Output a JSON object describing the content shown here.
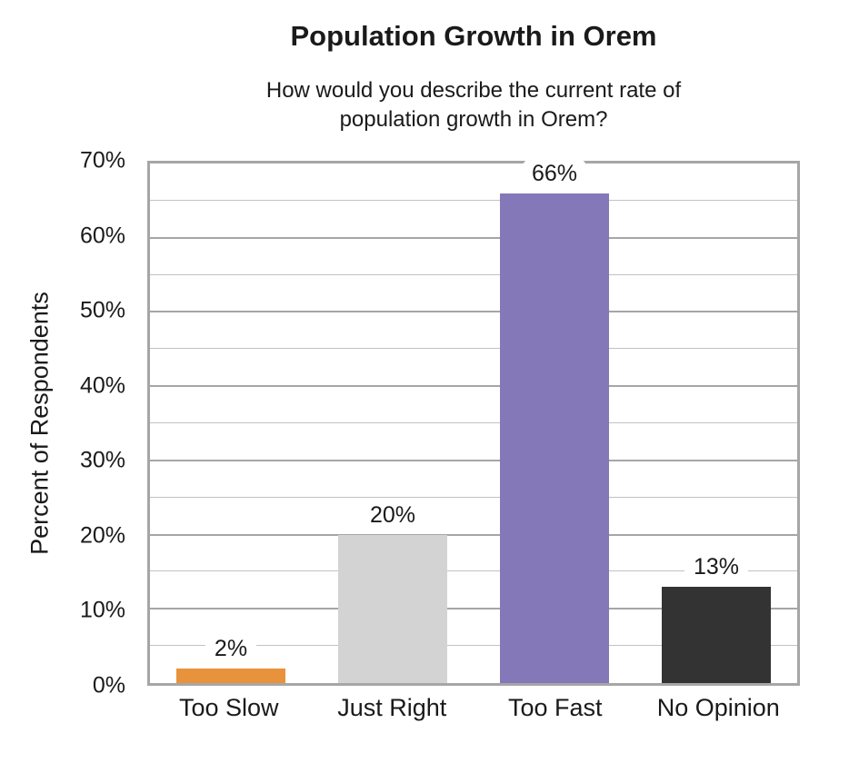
{
  "chart_data": {
    "type": "bar",
    "title": "Population Growth in Orem",
    "subtitle": "How would you describe the current rate of population growth in Orem?",
    "subtitle_lines": [
      "How would you describe the current rate of",
      "population growth in Orem?"
    ],
    "xlabel": "",
    "ylabel": "Percent of Respondents",
    "categories": [
      "Too Slow",
      "Just Right",
      "Too Fast",
      "No Opinion"
    ],
    "values": [
      2,
      20,
      66,
      13
    ],
    "data_labels": [
      "2%",
      "20%",
      "66%",
      "13%"
    ],
    "bar_colors": [
      "#E8923C",
      "#D3D3D3",
      "#8578B8",
      "#333333"
    ],
    "ylim": [
      0,
      70
    ],
    "ytick_step": 10,
    "minor_grid_step": 5,
    "yticks": [
      "0%",
      "10%",
      "20%",
      "30%",
      "40%",
      "50%",
      "60%",
      "70%"
    ],
    "grid": "on",
    "legend": "none",
    "colors": {
      "plot_border": "#A6A6A6",
      "major_grid": "#A6A6A6",
      "minor_grid": "#C2C2C2",
      "text": "#1A1A1A",
      "background": "#FFFFFF",
      "label_background": "#FFFFFF"
    }
  }
}
